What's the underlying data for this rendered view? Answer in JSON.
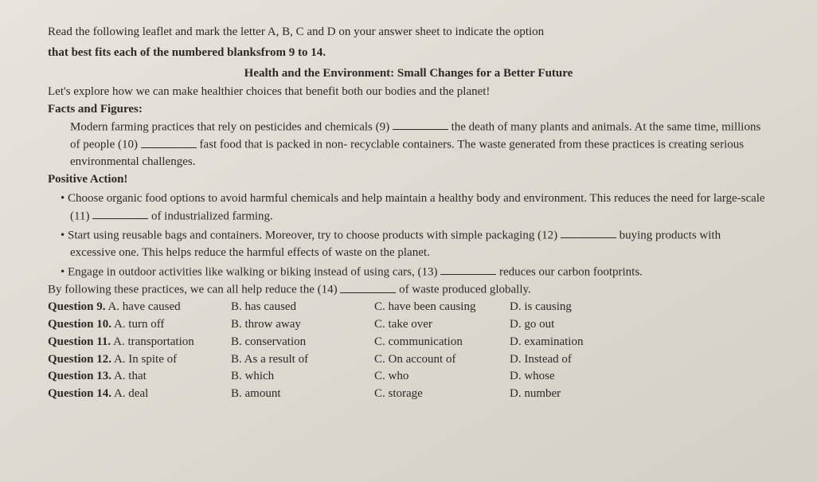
{
  "instructions": {
    "line1": "Read the following leaflet and mark the letter A, B, C and D on your answer sheet to indicate the option",
    "line2": "that best fits each of the numbered blanksfrom 9 to 14."
  },
  "subtitle": "Health and the Environment: Small Changes for a Better Future",
  "intro": "Let's explore how we can make healthier choices that benefit both our bodies and the planet!",
  "section1_title": "Facts and Figures:",
  "facts": {
    "p1a": "Modern farming practices that rely on pesticides and chemicals (9) ",
    "p1b": " the death of many plants and animals. At the same time, millions of people (10) ",
    "p1c": " fast food that is packed in non- recyclable containers. The waste generated from these practices is creating serious environmental challenges."
  },
  "section2_title": "Positive Action!",
  "bullets": {
    "b1a": "• Choose organic food options to avoid harmful chemicals and help maintain a healthy body and environment. This reduces the need for large-scale (11) ",
    "b1b": " of industrialized farming.",
    "b2a": "• Start using reusable bags and containers. Moreover, try to choose products with simple packaging (12) ",
    "b2b": " buying products with excessive one. This helps reduce the harmful effects of waste on the planet.",
    "b3a": "• Engage in outdoor activities like walking or biking instead of using cars, (13) ",
    "b3b": " reduces our carbon footprints."
  },
  "closing": {
    "a": "By following these practices, we can all help reduce the (14) ",
    "b": " of waste produced globally."
  },
  "questions": [
    {
      "q": "Question 9.",
      "a": "A. have caused",
      "b": "B. has caused",
      "c": "C. have been causing",
      "d": "D. is causing"
    },
    {
      "q": "Question 10.",
      "a": "A. turn off",
      "b": "B. throw away",
      "c": "C. take over",
      "d": "D. go out"
    },
    {
      "q": "Question 11.",
      "a": "A. transportation",
      "b": "B. conservation",
      "c": "C. communication",
      "d": "D. examination"
    },
    {
      "q": "Question 12.",
      "a": "A. In spite of",
      "b": "B. As a result of",
      "c": "C. On account of",
      "d": "D. Instead of"
    },
    {
      "q": "Question 13.",
      "a": "A. that",
      "b": "B. which",
      "c": "C. who",
      "d": "D. whose"
    },
    {
      "q": "Question 14.",
      "a": "A. deal",
      "b": "B. amount",
      "c": "C. storage",
      "d": "D. number"
    }
  ],
  "colors": {
    "text": "#2a2824",
    "bg_top": "#e8e4dc",
    "bg_bot": "#d4cfc4"
  }
}
